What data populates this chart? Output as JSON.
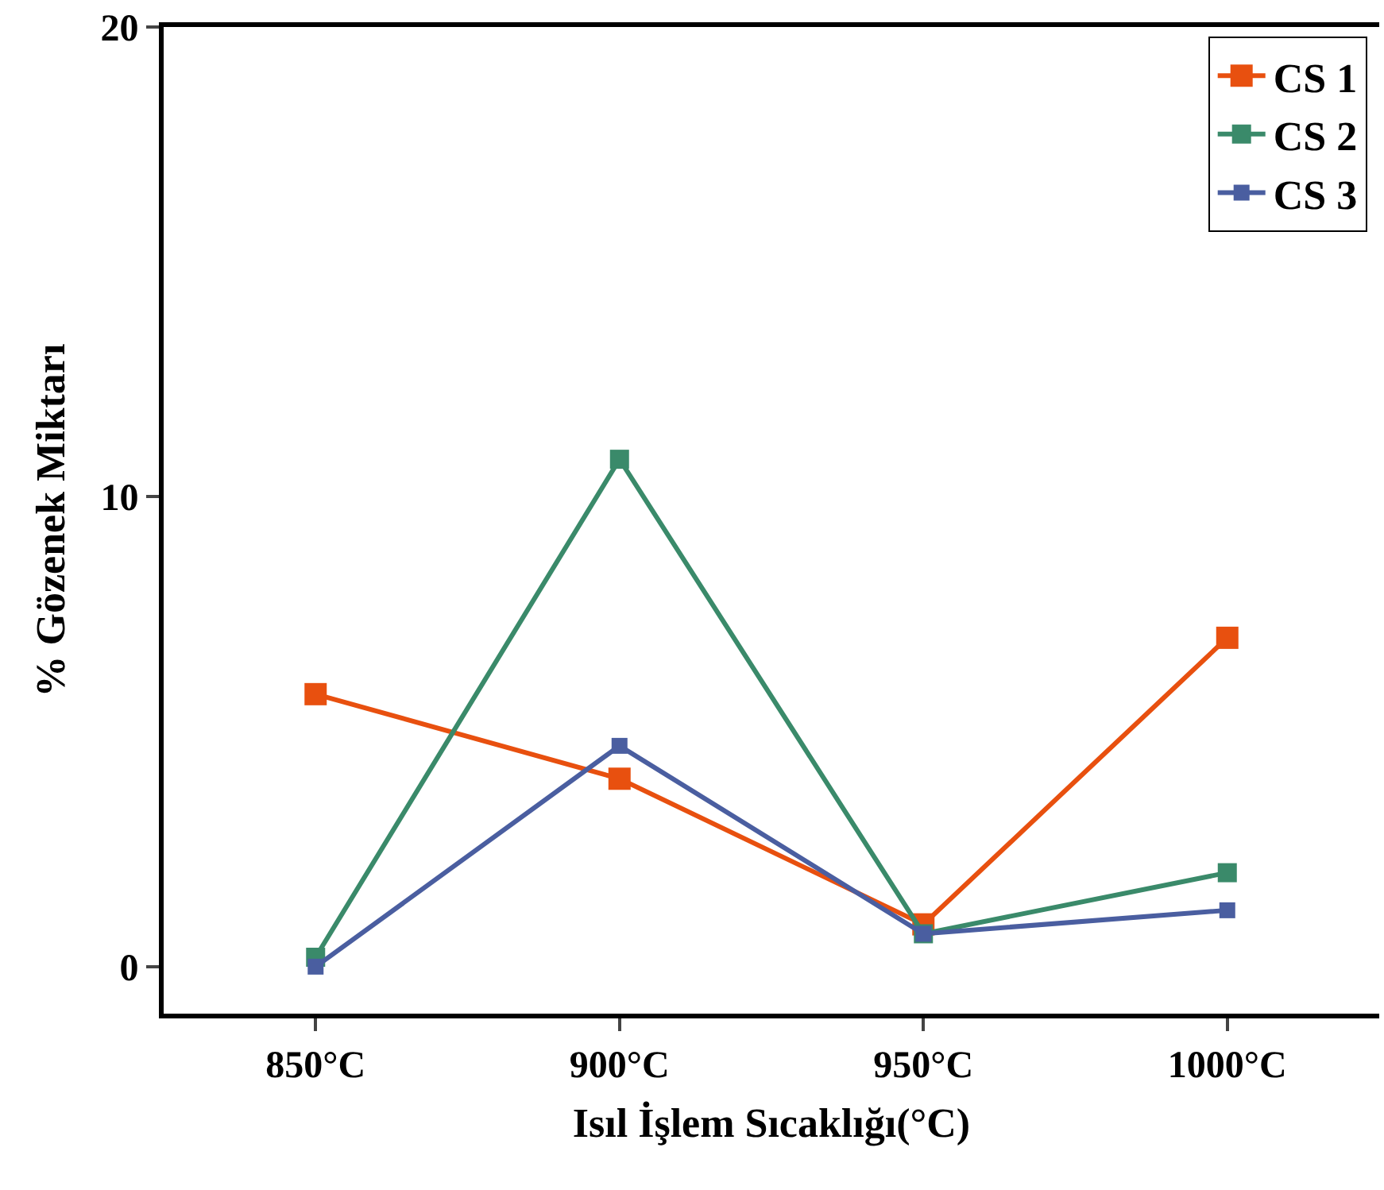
{
  "chart_data": {
    "type": "line",
    "xlabel": "Isıl İşlem Sıcaklığı(°C)",
    "ylabel": "% Gözenek Miktarı",
    "categories": [
      "850°C",
      "900°C",
      "950°C",
      "1000°C"
    ],
    "series": [
      {
        "name": "CS 1",
        "color": "#e8500f",
        "values": [
          5.8,
          4.0,
          0.9,
          7.0
        ]
      },
      {
        "name": "CS 2",
        "color": "#3a8a6a",
        "values": [
          0.2,
          10.8,
          0.7,
          2.0
        ]
      },
      {
        "name": "CS 3",
        "color": "#4a5ea0",
        "values": [
          0.0,
          4.7,
          0.7,
          1.2
        ]
      }
    ],
    "ylim": [
      -1,
      20
    ],
    "yticks": [
      0,
      10,
      20
    ],
    "legend": "top right",
    "marker": "square",
    "line_style": "solid"
  }
}
